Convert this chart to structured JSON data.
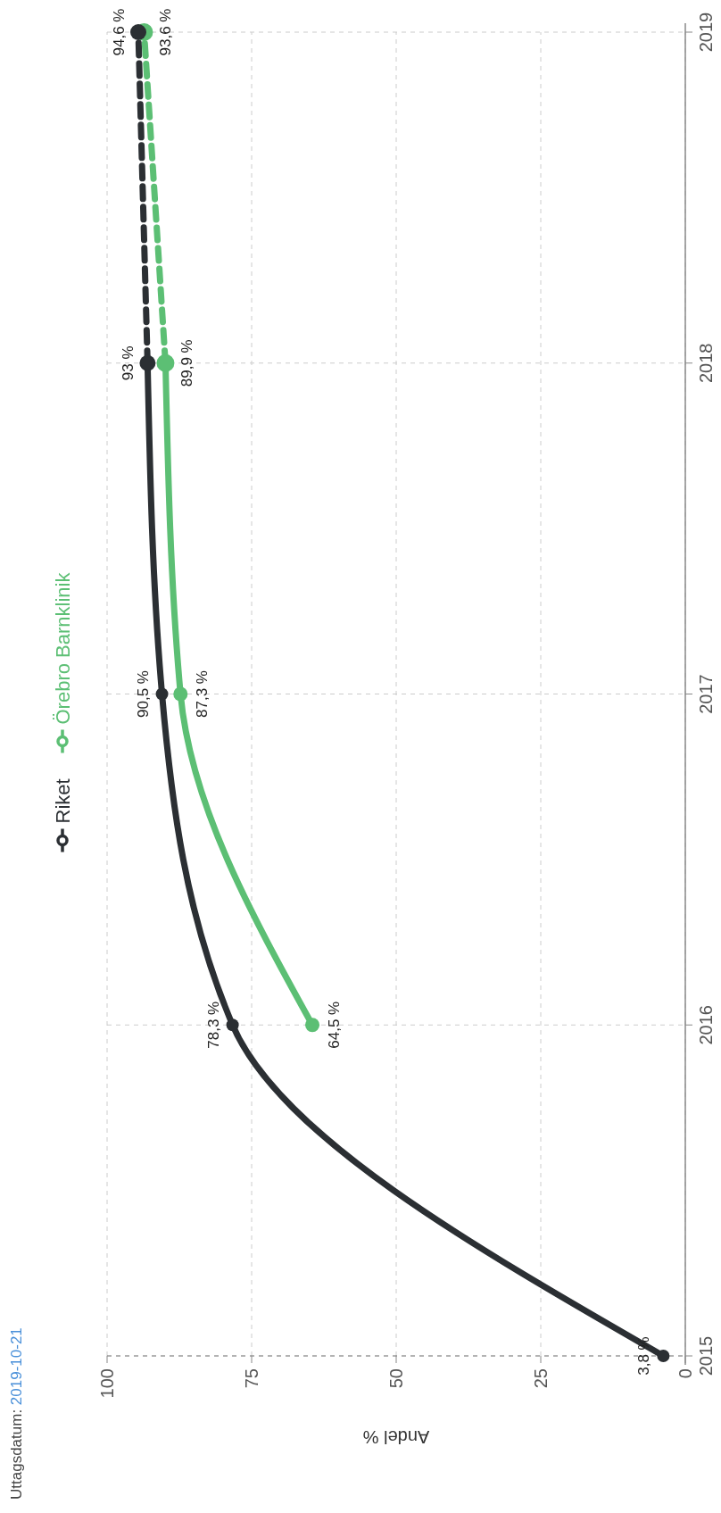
{
  "chart_data": {
    "type": "line",
    "orientation": "horizontal",
    "xlabel": "Andel %",
    "annotations": [
      "Uttagsdatum: 2019-10-21"
    ],
    "xlim": [
      100,
      0
    ],
    "xticks": [
      100,
      75,
      50,
      25,
      0
    ],
    "ylim": [
      2015,
      2019
    ],
    "yticks": [
      2015,
      2016,
      2017,
      2018,
      2019
    ],
    "grid": true,
    "legend": "left",
    "marker": "circle",
    "series": [
      {
        "name": "Riket",
        "color": "#2b2f33",
        "x": [
          2015,
          2016,
          2017,
          2018
        ],
        "values": [
          3.8,
          78.3,
          90.5,
          93
        ],
        "value_labels": [
          "3,8 %",
          "78,3 %",
          "90,5 %",
          "93 %"
        ]
      },
      {
        "name": "Örebro Barnklinik",
        "color": "#5cbf74",
        "x": [
          2016,
          2017,
          2018
        ],
        "values": [
          64.5,
          87.3,
          89.9
        ],
        "value_labels": [
          "64,5 %",
          "87,3 %",
          "89,9 %"
        ]
      },
      {
        "color": "#2b2f33",
        "x": [
          2018,
          2019
        ],
        "values": [
          93,
          94.6
        ],
        "value_labels": [
          null,
          "94,6 %"
        ],
        "line_style": "dashed"
      },
      {
        "color": "#5cbf74",
        "x": [
          2018,
          2019
        ],
        "values": [
          89.9,
          93.6
        ],
        "value_labels": [
          null,
          "93,6 %"
        ],
        "line_style": "dashed"
      }
    ]
  }
}
